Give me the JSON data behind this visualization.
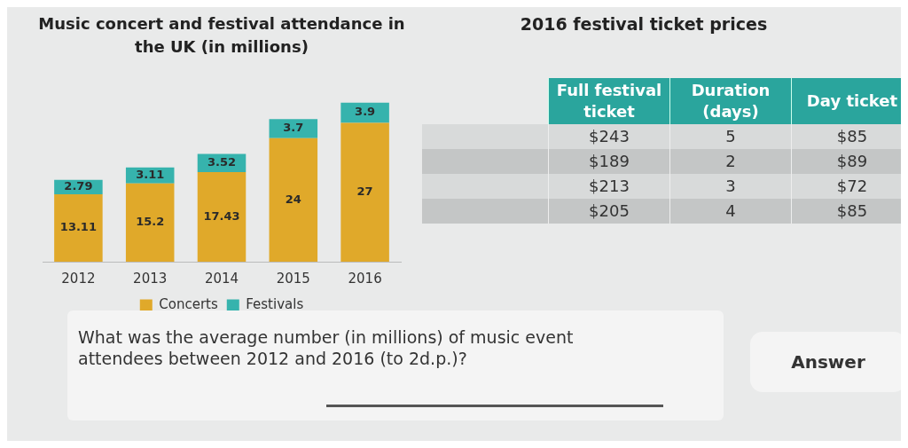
{
  "chart_data": [
    {
      "type": "bar",
      "title": "Music concert and festival attendance in the UK (in millions)",
      "categories": [
        "2012",
        "2013",
        "2014",
        "2015",
        "2016"
      ],
      "stacked": true,
      "data_labels": true,
      "legend": "bottom",
      "series": [
        {
          "name": "Concerts",
          "color": "#e0a92a",
          "values": [
            13.11,
            15.2,
            17.43,
            24,
            27
          ]
        },
        {
          "name": "Festivals",
          "color": "#36b3ad",
          "values": [
            2.79,
            3.11,
            3.52,
            3.7,
            3.9
          ]
        }
      ]
    },
    {
      "type": "other",
      "title": "2016 festival ticket prices",
      "annotations": [
        "Full festival ticket",
        "Duration (days)",
        "Day ticket",
        "$243",
        "5",
        "$85",
        "$189",
        "2",
        "$89",
        "$213",
        "3",
        "$72",
        "$205",
        "4",
        "$85"
      ]
    },
    {
      "type": "other",
      "annotations": [
        "What was the average number (in millions) of music event attendees between 2012 and 2016 (to 2d.p.)?",
        "Answer"
      ]
    }
  ]
}
